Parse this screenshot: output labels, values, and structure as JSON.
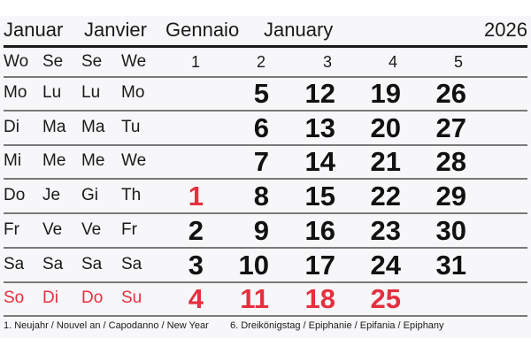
{
  "header": {
    "months": [
      "Januar",
      "Janvier",
      "Gennaio",
      "January"
    ],
    "year": "2026"
  },
  "week_label": [
    "Wo",
    "Se",
    "Se",
    "We"
  ],
  "weeks": [
    "1",
    "2",
    "3",
    "4",
    "5"
  ],
  "rows": [
    {
      "labels": [
        "Mo",
        "Lu",
        "Lu",
        "Mo"
      ],
      "days": [
        "",
        "5",
        "12",
        "19",
        "26"
      ],
      "red": []
    },
    {
      "labels": [
        "Di",
        "Ma",
        "Ma",
        "Tu"
      ],
      "days": [
        "",
        "6",
        "13",
        "20",
        "27"
      ],
      "red": []
    },
    {
      "labels": [
        "Mi",
        "Me",
        "Me",
        "We"
      ],
      "days": [
        "",
        "7",
        "14",
        "21",
        "28"
      ],
      "red": []
    },
    {
      "labels": [
        "Do",
        "Je",
        "Gi",
        "Th"
      ],
      "days": [
        "1",
        "8",
        "15",
        "22",
        "29"
      ],
      "red": [
        0
      ]
    },
    {
      "labels": [
        "Fr",
        "Ve",
        "Ve",
        "Fr"
      ],
      "days": [
        "2",
        "9",
        "16",
        "23",
        "30"
      ],
      "red": []
    },
    {
      "labels": [
        "Sa",
        "Sa",
        "Sa",
        "Sa"
      ],
      "days": [
        "3",
        "10",
        "17",
        "24",
        "31"
      ],
      "red": []
    },
    {
      "labels": [
        "So",
        "Di",
        "Do",
        "Su"
      ],
      "days": [
        "4",
        "11",
        "18",
        "25",
        ""
      ],
      "red": [
        0,
        1,
        2,
        3
      ],
      "sunday": true
    }
  ],
  "footnotes": [
    "1. Neujahr / Nouvel an / Capodanno / New Year",
    "6. Dreikönigstag / Epiphanie / Epifania / Epiphany"
  ],
  "colors": {
    "holiday": "#e4303f",
    "text": "#111111"
  }
}
